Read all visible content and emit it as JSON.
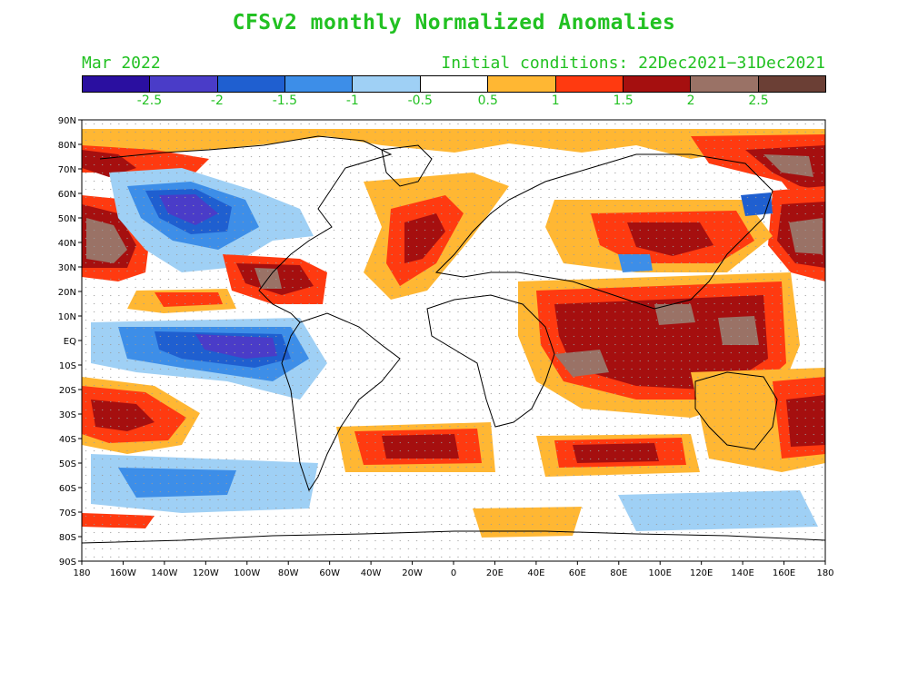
{
  "title": "CFSv2 monthly Normalized Anomalies",
  "valid_month": "Mar 2022",
  "initial_conditions": "Initial conditions: 22Dec2021−31Dec2021",
  "colorbar": {
    "colors": [
      "#2a0fa0",
      "#4a3cc8",
      "#1f5fd0",
      "#3d8ee8",
      "#9fd0f5",
      "#ffffff",
      "#ffb733",
      "#ff3a10",
      "#a50f0f",
      "#9a7266",
      "#6b3f35"
    ],
    "labels": [
      "-2.5",
      "-2",
      "-1.5",
      "-1",
      "-0.5",
      "0.5",
      "1",
      "1.5",
      "2",
      "2.5"
    ]
  },
  "axes": {
    "lat_labels": [
      "90N",
      "80N",
      "70N",
      "60N",
      "50N",
      "40N",
      "30N",
      "20N",
      "10N",
      "EQ",
      "10S",
      "20S",
      "30S",
      "40S",
      "50S",
      "60S",
      "70S",
      "80S",
      "90S"
    ],
    "lon_labels": [
      "180",
      "160W",
      "140W",
      "120W",
      "100W",
      "80W",
      "60W",
      "40W",
      "20W",
      "0",
      "20E",
      "40E",
      "60E",
      "80E",
      "100E",
      "120E",
      "140E",
      "160E",
      "180"
    ]
  }
}
